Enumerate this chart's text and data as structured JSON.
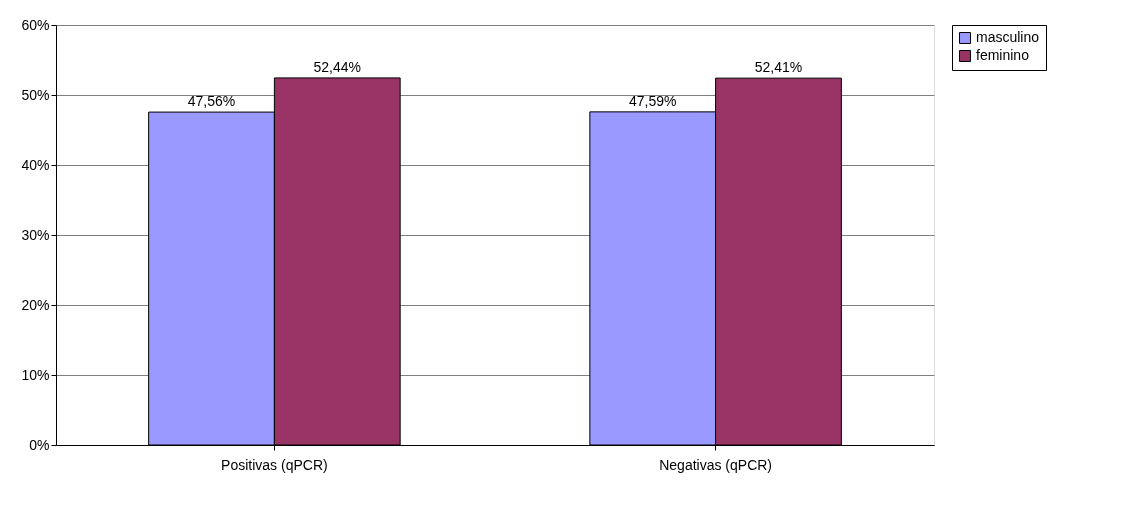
{
  "chart_data": {
    "type": "bar",
    "categories": [
      "Positivas (qPCR)",
      "Negativas (qPCR)"
    ],
    "series": [
      {
        "name": "masculino",
        "color": "#9999ff",
        "values": [
          47.56,
          47.59
        ],
        "value_labels": [
          "47,56%",
          "47,59%"
        ]
      },
      {
        "name": "feminino",
        "color": "#993366",
        "values": [
          52.44,
          52.41
        ],
        "value_labels": [
          "52,44%",
          "52,41%"
        ]
      }
    ],
    "ylim": [
      0,
      60
    ],
    "yticks": [
      {
        "value": 0,
        "label": "0%"
      },
      {
        "value": 10,
        "label": "10%"
      },
      {
        "value": 20,
        "label": "20%"
      },
      {
        "value": 30,
        "label": "30%"
      },
      {
        "value": 40,
        "label": "40%"
      },
      {
        "value": 50,
        "label": "50%"
      },
      {
        "value": 60,
        "label": "60%"
      }
    ],
    "grid": "y",
    "legend": "right"
  }
}
